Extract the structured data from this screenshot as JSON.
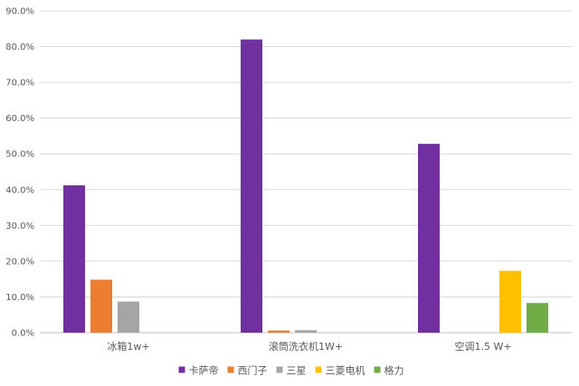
{
  "chart_data": {
    "type": "bar",
    "title": "",
    "xlabel": "",
    "ylabel": "",
    "ylim": [
      0,
      90
    ],
    "y_ticks": [
      0,
      10,
      20,
      30,
      40,
      50,
      60,
      70,
      80,
      90
    ],
    "y_tick_labels": [
      "0.0%",
      "10.0%",
      "20.0%",
      "30.0%",
      "40.0%",
      "50.0%",
      "60.0%",
      "70.0%",
      "80.0%",
      "90.0%"
    ],
    "grid": true,
    "legend_position": "bottom",
    "categories": [
      "冰箱1w+",
      "滚筒洗衣机1W+",
      "空调1.5 W+"
    ],
    "series": [
      {
        "name": "卡萨帝",
        "color": "#7030a0",
        "values": [
          41.2,
          82.0,
          52.8
        ]
      },
      {
        "name": "西门子",
        "color": "#ed7d31",
        "values": [
          14.8,
          0.6,
          null
        ]
      },
      {
        "name": "三星",
        "color": "#a5a5a5",
        "values": [
          8.7,
          0.7,
          null
        ]
      },
      {
        "name": "三菱电机",
        "color": "#ffc000",
        "values": [
          null,
          null,
          17.3
        ]
      },
      {
        "name": "格力",
        "color": "#70ad47",
        "values": [
          null,
          null,
          8.3
        ]
      }
    ]
  }
}
